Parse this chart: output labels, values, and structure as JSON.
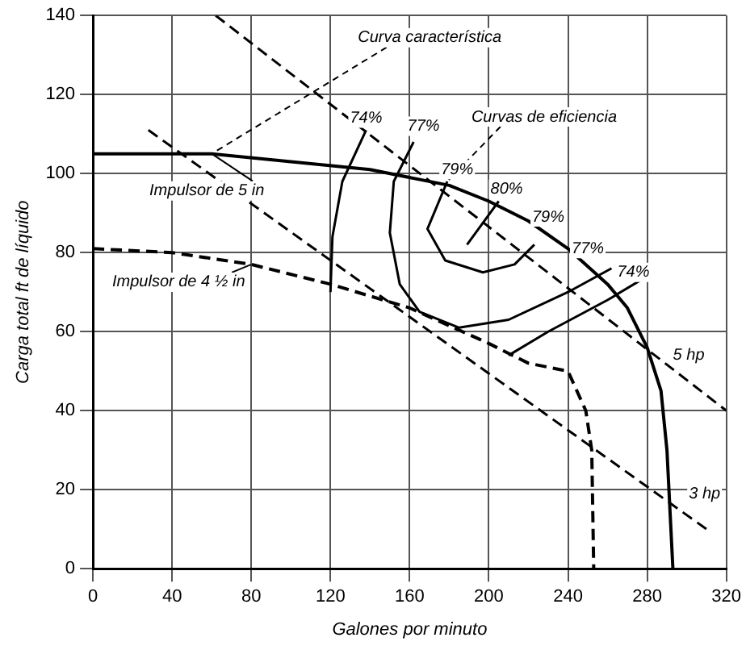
{
  "chart_data": {
    "type": "line",
    "xlabel": "Galones por minuto",
    "ylabel": "Carga total ft de líquido",
    "xlim": [
      0,
      320
    ],
    "xticks": [
      0,
      40,
      80,
      120,
      160,
      200,
      240,
      280,
      320
    ],
    "ylim": [
      0,
      140
    ],
    "yticks": [
      0,
      20,
      40,
      60,
      80,
      100,
      120,
      140
    ],
    "grid": true,
    "legend": false,
    "marker": "none",
    "series": [
      {
        "color": "#000000",
        "line_style": "solid",
        "x": [
          0,
          60,
          100,
          140,
          180,
          200,
          220,
          240,
          260,
          270,
          280,
          287,
          290,
          292,
          293
        ],
        "values": [
          105,
          105,
          103,
          101,
          97,
          93,
          88,
          81,
          72,
          66,
          56,
          45,
          30,
          10,
          0
        ]
      },
      {
        "color": "#000000",
        "line_style": "dashed",
        "x": [
          0,
          40,
          80,
          120,
          160,
          200,
          220,
          240,
          249,
          252,
          253
        ],
        "values": [
          81,
          80,
          77,
          72,
          66,
          57,
          52,
          50,
          40,
          30,
          0
        ]
      },
      {
        "color": "#000000",
        "line_style": "solid",
        "x": [
          138,
          126,
          121,
          120,
          null,
          210,
          230,
          260,
          280
        ],
        "values": [
          111,
          98,
          84,
          70,
          null,
          54,
          60,
          68,
          74
        ]
      },
      {
        "color": "#000000",
        "line_style": "solid",
        "x": [
          162,
          152,
          150,
          155,
          165,
          185,
          210,
          240,
          262
        ],
        "values": [
          108,
          98,
          85,
          72,
          65,
          61,
          63,
          70,
          76
        ]
      },
      {
        "color": "#000000",
        "line_style": "solid",
        "x": [
          179,
          169,
          178,
          197,
          213,
          223
        ],
        "values": [
          98,
          86,
          78,
          75,
          77,
          82
        ]
      },
      {
        "color": "#000000",
        "line_style": "solid",
        "x": [
          189,
          205
        ],
        "values": [
          82,
          93
        ]
      },
      {
        "color": "#000000",
        "line_style": "dashed",
        "x": [
          62,
          320
        ],
        "values": [
          140,
          40
        ]
      },
      {
        "color": "#000000",
        "line_style": "dashed",
        "x": [
          28,
          310
        ],
        "values": [
          111,
          10
        ]
      }
    ],
    "annotations": [
      {
        "text": "Curva característica",
        "x": 60,
        "y": 105
      },
      {
        "text": "Curvas de eficiencia",
        "x": 179,
        "y": 98
      },
      {
        "text": "Impulsor de 5 in",
        "x": 60,
        "y": 105
      },
      {
        "text": "Impulsor de 4 ½ in",
        "x": 80,
        "y": 77
      },
      {
        "text": "74%",
        "x": 138,
        "y": 114
      },
      {
        "text": "77%",
        "x": 167,
        "y": 112
      },
      {
        "text": "79%",
        "x": 184,
        "y": 101
      },
      {
        "text": "80%",
        "x": 209,
        "y": 96
      },
      {
        "text": "79%",
        "x": 230,
        "y": 89
      },
      {
        "text": "77%",
        "x": 250,
        "y": 81
      },
      {
        "text": "74%",
        "x": 273,
        "y": 75
      },
      {
        "text": "5 hp",
        "x": 301,
        "y": 54
      },
      {
        "text": "3 hp",
        "x": 309,
        "y": 19
      }
    ]
  }
}
